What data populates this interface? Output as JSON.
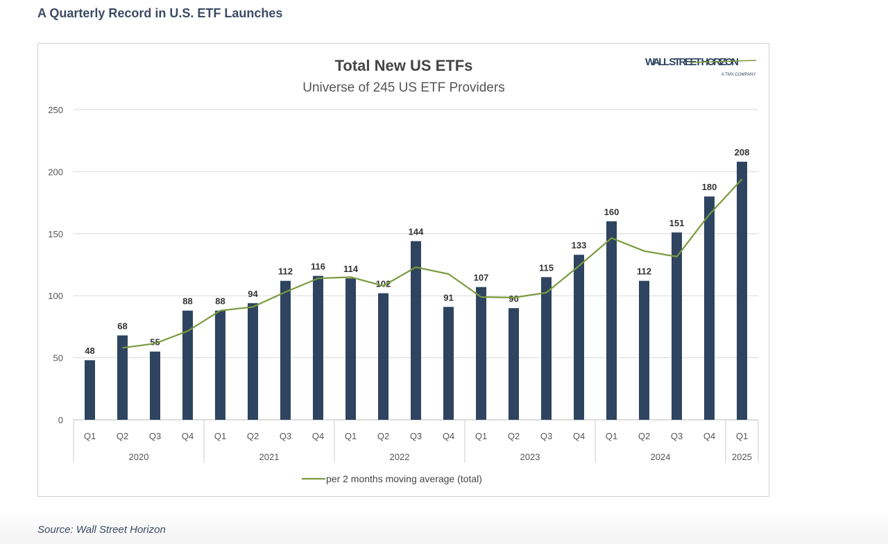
{
  "page": {
    "heading": "A Quarterly Record in U.S. ETF Launches",
    "source": "Source: Wall Street Horizon"
  },
  "logo": {
    "text": "WALL STREET HORIZON",
    "sub": "A TMX COMPANY"
  },
  "chart_data": {
    "type": "bar",
    "title": "Total New US ETFs",
    "subtitle": "Universe of 245 US ETF Providers",
    "categories": [
      "Q1",
      "Q2",
      "Q3",
      "Q4",
      "Q1",
      "Q2",
      "Q3",
      "Q4",
      "Q1",
      "Q2",
      "Q3",
      "Q4",
      "Q1",
      "Q2",
      "Q3",
      "Q4",
      "Q1",
      "Q2",
      "Q3",
      "Q4",
      "Q1"
    ],
    "groups": [
      {
        "label": "2020",
        "count": 4
      },
      {
        "label": "2021",
        "count": 4
      },
      {
        "label": "2022",
        "count": 4
      },
      {
        "label": "2023",
        "count": 4
      },
      {
        "label": "2024",
        "count": 4
      },
      {
        "label": "2025",
        "count": 1
      }
    ],
    "values": [
      48,
      68,
      55,
      88,
      88,
      94,
      112,
      116,
      114,
      102,
      144,
      91,
      107,
      90,
      115,
      133,
      160,
      112,
      151,
      180,
      208
    ],
    "moving_average": {
      "name": "per 2 months moving average (total)",
      "values": [
        null,
        58,
        61.5,
        71.5,
        88,
        91,
        103,
        114,
        115,
        108,
        123,
        117.5,
        99,
        98.5,
        102.5,
        124,
        146.5,
        136,
        131.5,
        165.5,
        194
      ]
    },
    "ylim": [
      0,
      250
    ],
    "yticks": [
      0,
      50,
      100,
      150,
      200,
      250
    ],
    "grid": true,
    "legend": "bottom",
    "colors": {
      "bar": "#2e4460",
      "line": "#7a9a3e",
      "grid": "#d9d9d9"
    }
  }
}
